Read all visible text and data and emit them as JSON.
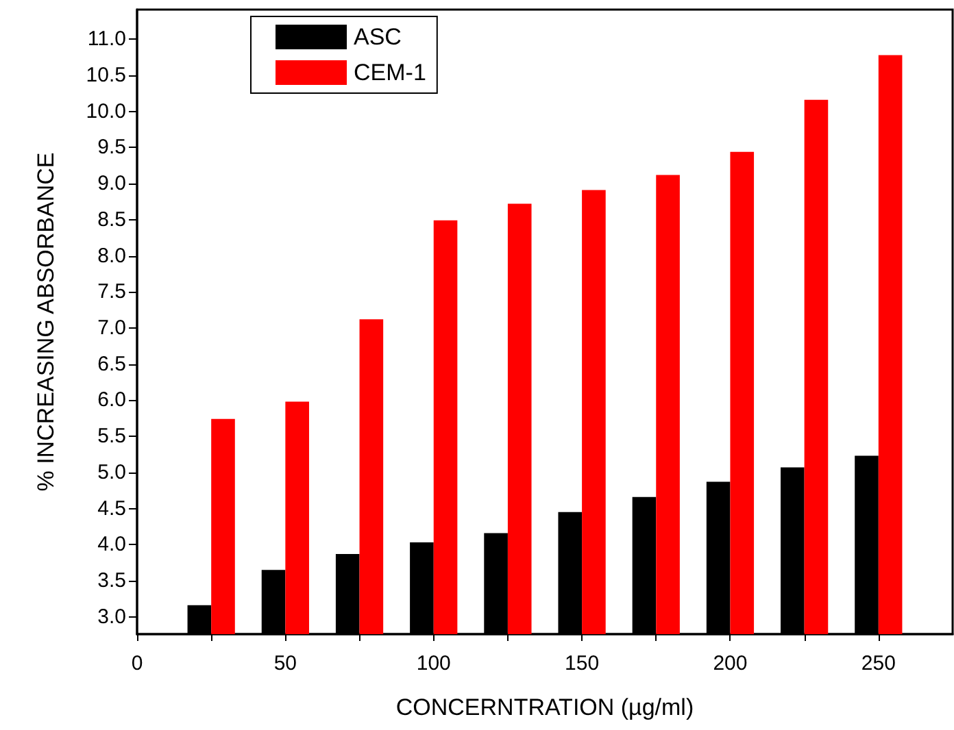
{
  "chart_data": {
    "type": "bar",
    "xlabel": "CONCERNTRATION (µg/ml)",
    "ylabel": "% INCREASING ABSORBANCE",
    "x": [
      25,
      50,
      75,
      100,
      125,
      150,
      175,
      200,
      225,
      250
    ],
    "series": [
      {
        "name": "ASC",
        "color": "#000000",
        "values": [
          3.16,
          3.65,
          3.87,
          4.03,
          4.16,
          4.45,
          4.66,
          4.87,
          5.07,
          5.23
        ]
      },
      {
        "name": "CEM-1",
        "color": "#ff0000",
        "values": [
          5.74,
          5.98,
          7.12,
          8.49,
          8.72,
          8.91,
          9.12,
          9.44,
          10.16,
          10.78
        ]
      }
    ],
    "xlim": [
      0,
      275
    ],
    "xticks": [
      0,
      {
        "value": 25,
        "label": null
      },
      50,
      {
        "value": 75,
        "label": null
      },
      100,
      {
        "value": 125,
        "label": null
      },
      150,
      {
        "value": 175,
        "label": null
      },
      200,
      {
        "value": 225,
        "label": null
      },
      250
    ],
    "ylim": [
      2.76,
      11.41
    ],
    "yticks": [
      {
        "value": 3,
        "label": "3.0"
      },
      {
        "value": 3.5,
        "label": "3.5"
      },
      {
        "value": 4,
        "label": "4.0"
      },
      {
        "value": 4.5,
        "label": "4.5"
      },
      {
        "value": 5,
        "label": "5.0"
      },
      {
        "value": 5.5,
        "label": "5.5"
      },
      {
        "value": 6,
        "label": "6.0"
      },
      {
        "value": 6.5,
        "label": "6.5"
      },
      {
        "value": 7,
        "label": "7.0"
      },
      {
        "value": 7.5,
        "label": "7.5"
      },
      {
        "value": 8,
        "label": "8.0"
      },
      {
        "value": 8.5,
        "label": "8.5"
      },
      {
        "value": 9,
        "label": "9.0"
      },
      {
        "value": 9.5,
        "label": "9.5"
      },
      {
        "value": 10,
        "label": "10.0"
      },
      {
        "value": 10.5,
        "label": "10.5"
      },
      {
        "value": 11,
        "label": "11.0"
      }
    ],
    "grid": false,
    "legend": "top left"
  }
}
